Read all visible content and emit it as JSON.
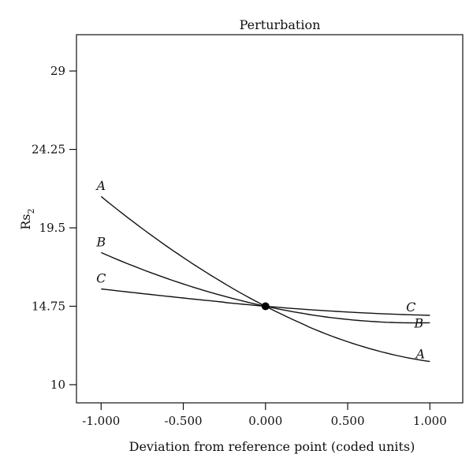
{
  "chart_data": {
    "type": "line",
    "title": "Perturbation",
    "xlabel": "Deviation from reference point (coded units)",
    "ylabel": "Rs",
    "ylabel_subscript": "2",
    "xlim": [
      -1.15,
      1.2
    ],
    "ylim": [
      8.9,
      31.2
    ],
    "x_ticks": [
      -1.0,
      -0.5,
      0.0,
      0.5,
      1.0
    ],
    "x_tick_labels": [
      "-1.000",
      "-0.500",
      "0.000",
      "0.500",
      "1.000"
    ],
    "y_ticks": [
      10,
      14.75,
      19.5,
      24.25,
      29
    ],
    "y_tick_labels": [
      "10",
      "14.75",
      "19.5",
      "24.25",
      "29"
    ],
    "grid": false,
    "reference_point": {
      "x": 0.0,
      "y": 14.75
    },
    "series": [
      {
        "name": "A",
        "x": [
          -1.0,
          -0.5,
          0.0,
          0.5,
          1.0
        ],
        "values": [
          21.4,
          17.7,
          14.75,
          12.6,
          11.4
        ]
      },
      {
        "name": "B",
        "x": [
          -1.0,
          -0.5,
          0.0,
          0.5,
          1.0
        ],
        "values": [
          18.0,
          16.1,
          14.75,
          13.95,
          13.75
        ]
      },
      {
        "name": "C",
        "x": [
          -1.0,
          -0.5,
          0.0,
          0.5,
          1.0
        ],
        "values": [
          15.8,
          15.25,
          14.75,
          14.4,
          14.2
        ]
      }
    ]
  }
}
